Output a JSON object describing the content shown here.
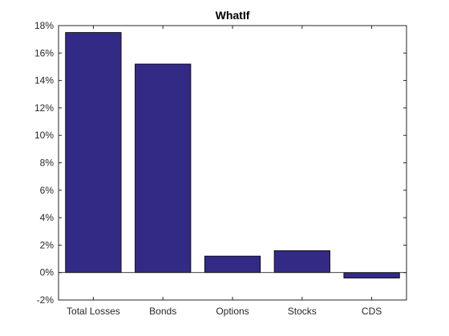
{
  "chart_data": {
    "type": "bar",
    "title": "WhatIf",
    "xlabel": "",
    "ylabel": "",
    "categories": [
      "Total Losses",
      "Bonds",
      "Options",
      "Stocks",
      "CDS"
    ],
    "values": [
      17.5,
      15.2,
      1.2,
      1.6,
      -0.4
    ],
    "ylim": [
      -2,
      18
    ],
    "yticks": [
      -2,
      0,
      2,
      4,
      6,
      8,
      10,
      12,
      14,
      16,
      18
    ],
    "ytick_labels": [
      "-2%",
      "0%",
      "2%",
      "4%",
      "6%",
      "8%",
      "10%",
      "12%",
      "14%",
      "16%",
      "18%"
    ],
    "bar_color": "#332a85",
    "grid": false,
    "legend": "none"
  }
}
